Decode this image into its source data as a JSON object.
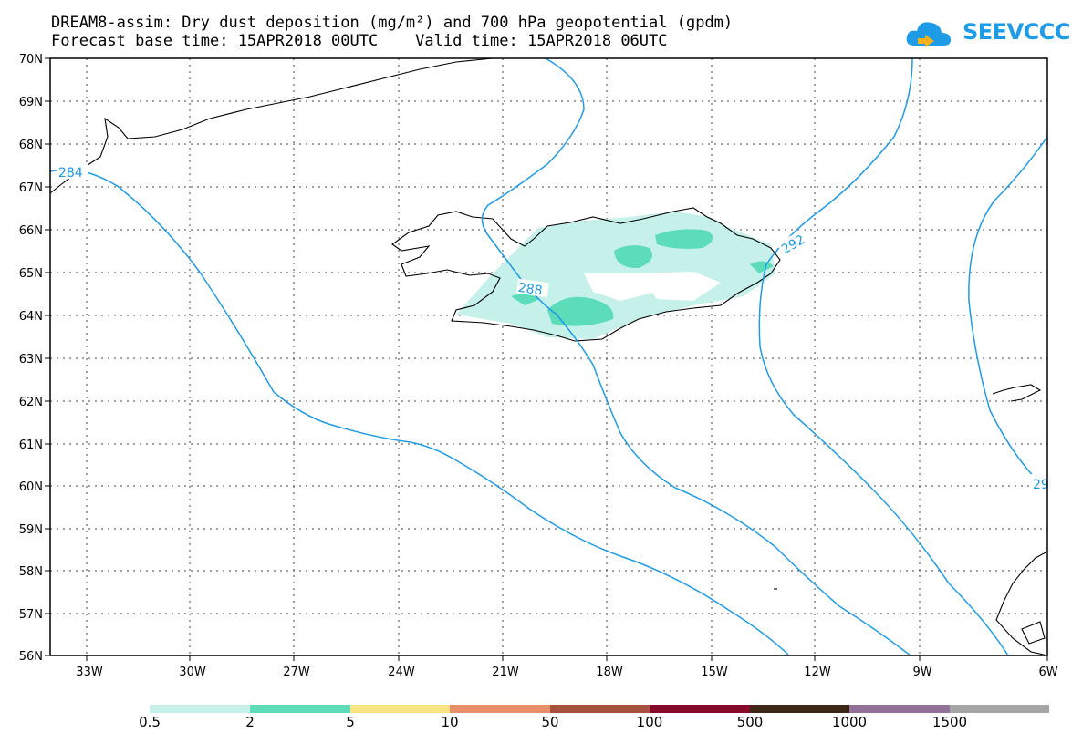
{
  "header": {
    "title_line1": "DREAM8-assim: Dry dust deposition (mg/m²) and 700 hPa geopotential (gpdm)",
    "title_line2": "Forecast base time: 15APR2018 00UTC    Valid time: 15APR2018 06UTC",
    "logo_text": "SEEVCCC",
    "logo_icon": "cloud-icon"
  },
  "map": {
    "lat_labels": [
      "70N",
      "69N",
      "68N",
      "67N",
      "66N",
      "65N",
      "64N",
      "63N",
      "62N",
      "61N",
      "60N",
      "59N",
      "58N",
      "57N",
      "56N"
    ],
    "lon_labels": [
      "33W",
      "30W",
      "27W",
      "24W",
      "21W",
      "18W",
      "15W",
      "12W",
      "9W",
      "6W"
    ],
    "contour_color": "#1e9be6",
    "contour_labels": [
      "284",
      "288",
      "292",
      "29"
    ],
    "grid": "dotted"
  },
  "legend": {
    "colors": [
      "#c6f0ea",
      "#5cdcb9",
      "#f7e582",
      "#e88e6a",
      "#a6503e",
      "#870a2a",
      "#3d2817",
      "#927099",
      "#a5a5a5"
    ],
    "labels": [
      "0.5",
      "2",
      "5",
      "10",
      "50",
      "100",
      "500",
      "1000",
      "1500"
    ]
  }
}
